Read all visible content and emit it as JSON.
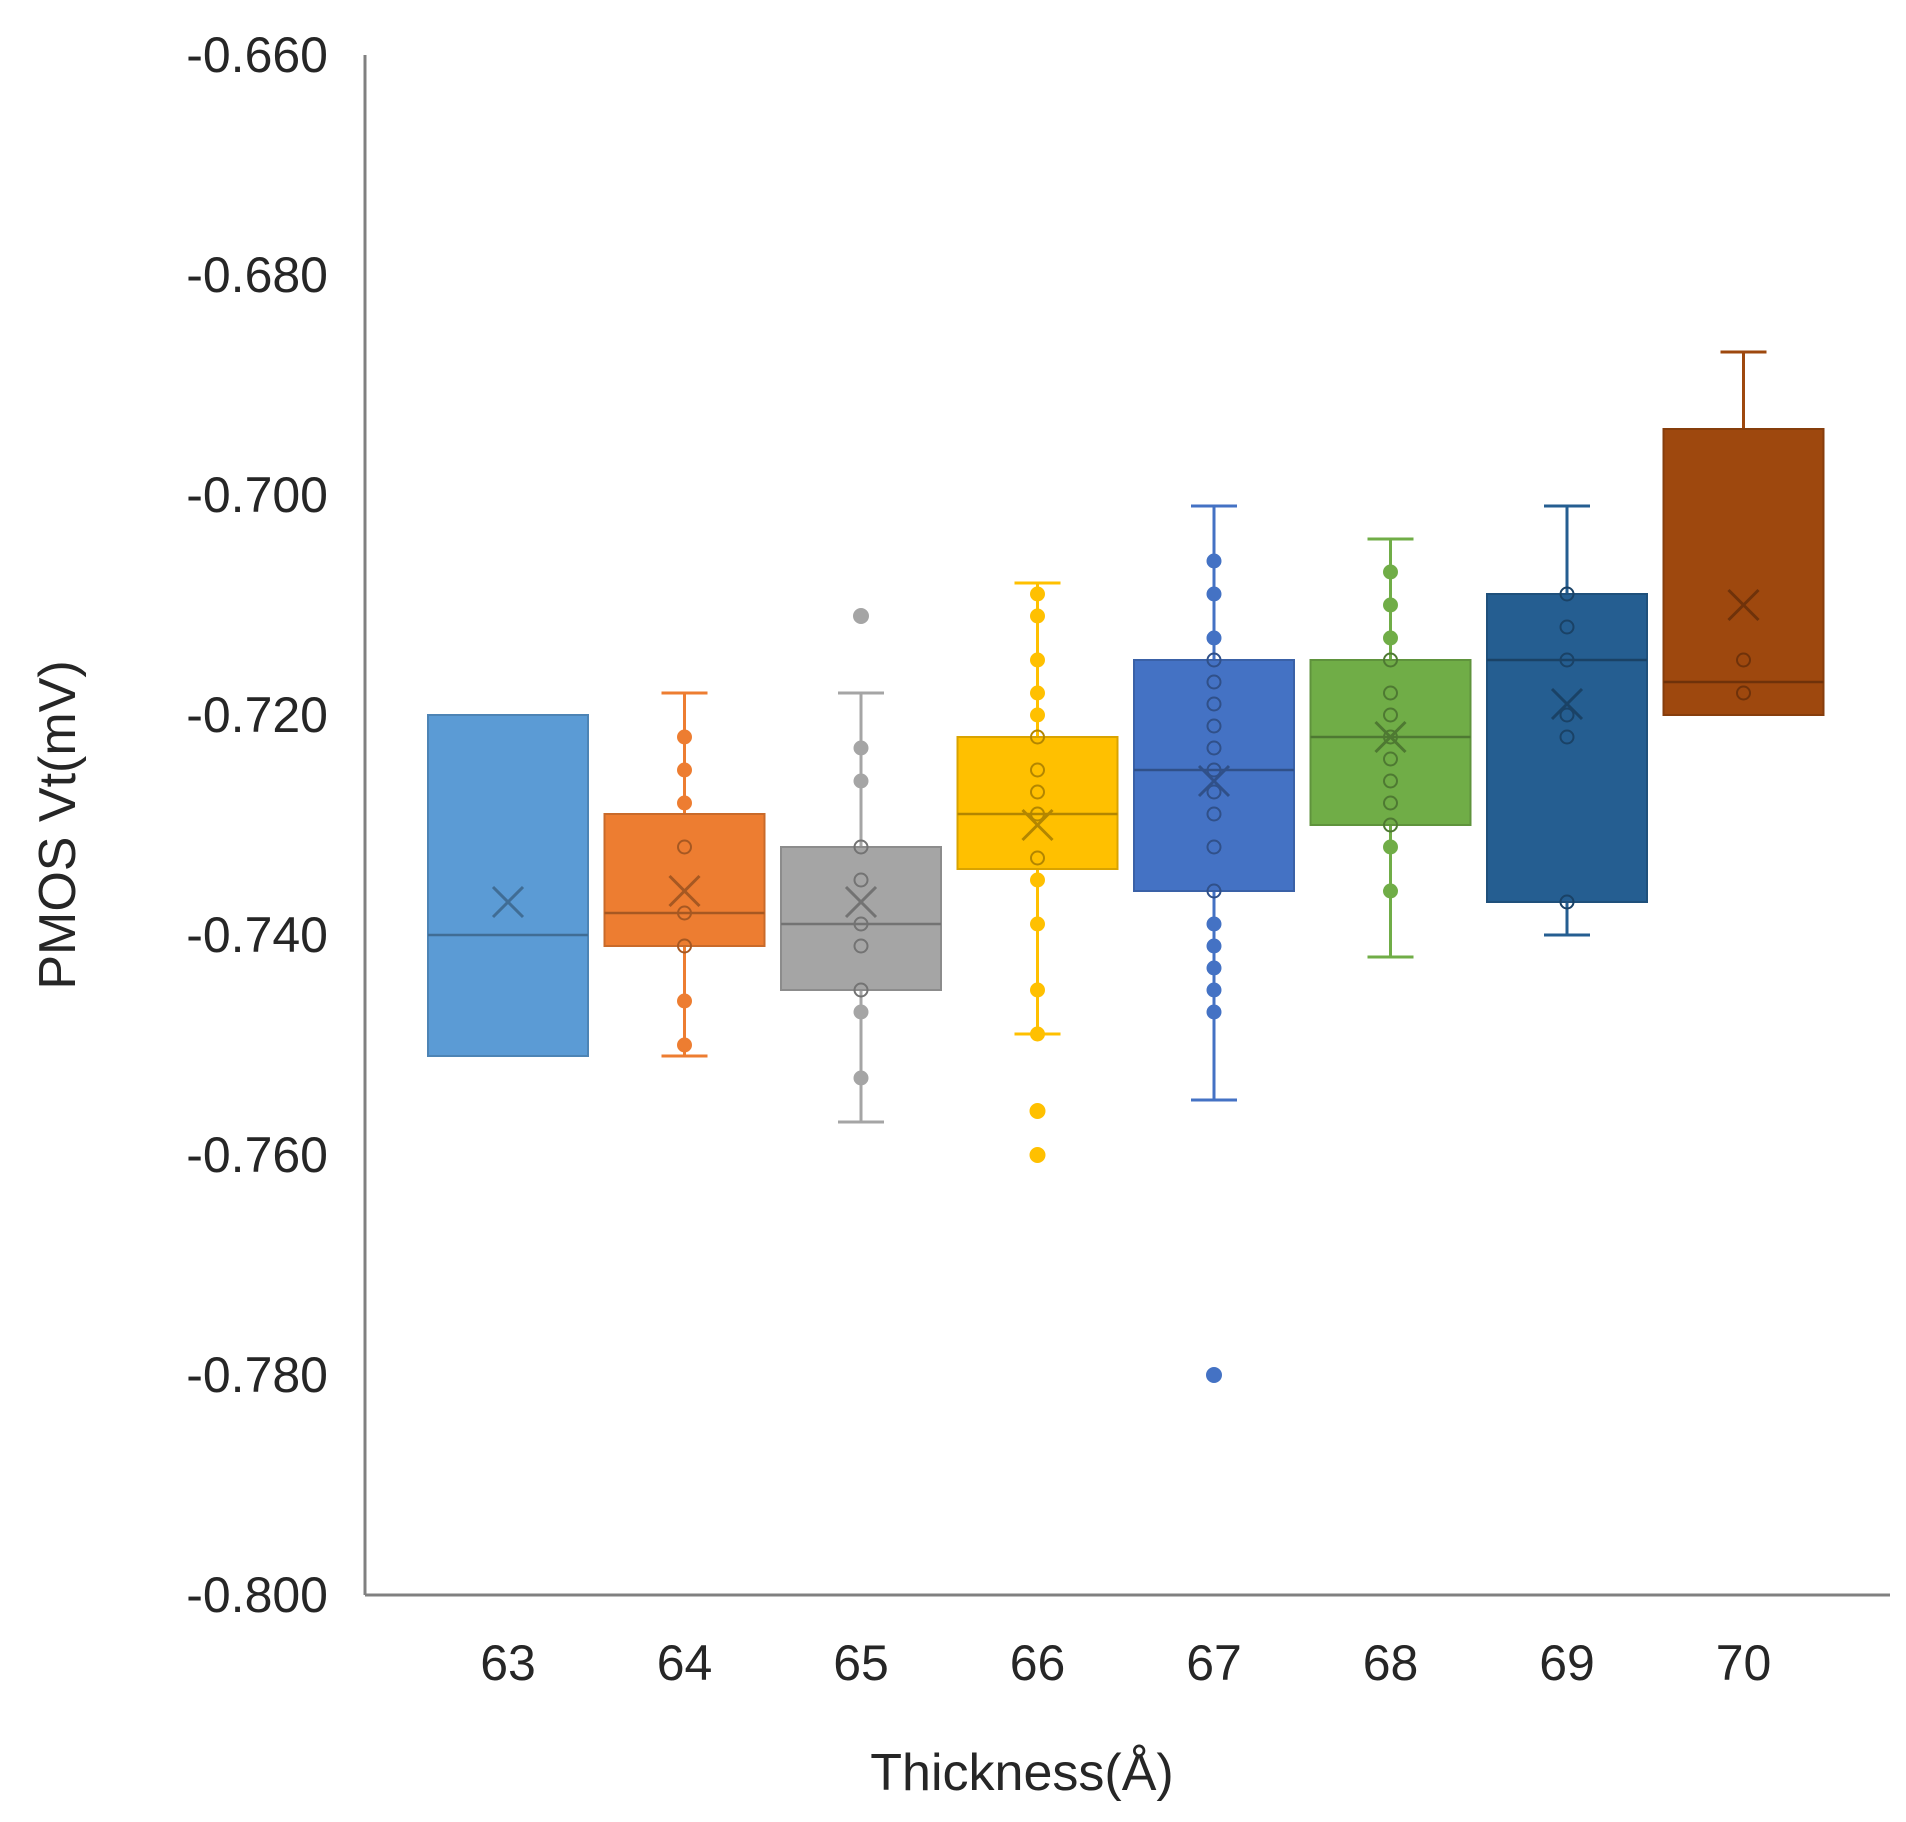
{
  "chart_data": {
    "type": "box",
    "title": "",
    "xlabel": "Thickness(Å)",
    "ylabel": "PMOS Vt(mV)",
    "ylim": [
      -0.8,
      -0.66
    ],
    "yticks": [
      "-0.660",
      "-0.680",
      "-0.700",
      "-0.720",
      "-0.740",
      "-0.760",
      "-0.780",
      "-0.800"
    ],
    "ytick_values": [
      -0.66,
      -0.68,
      -0.7,
      -0.72,
      -0.74,
      -0.76,
      -0.78,
      -0.8
    ],
    "categories": [
      "63",
      "64",
      "65",
      "66",
      "67",
      "68",
      "69",
      "70"
    ],
    "grid": false,
    "boxes": [
      {
        "category": "63",
        "color": "#5B9BD5",
        "whisker_low": -0.751,
        "q1": -0.751,
        "median": -0.74,
        "q3": -0.72,
        "whisker_high": -0.72,
        "mean": -0.737,
        "points": [],
        "outliers": []
      },
      {
        "category": "64",
        "color": "#ED7D31",
        "whisker_low": -0.751,
        "q1": -0.741,
        "median": -0.738,
        "q3": -0.729,
        "whisker_high": -0.718,
        "mean": -0.736,
        "points": [
          -0.722,
          -0.725,
          -0.728,
          -0.732,
          -0.738,
          -0.741,
          -0.746,
          -0.75
        ],
        "outliers": []
      },
      {
        "category": "65",
        "color": "#A5A5A5",
        "whisker_low": -0.757,
        "q1": -0.745,
        "median": -0.739,
        "q3": -0.732,
        "whisker_high": -0.718,
        "mean": -0.737,
        "points": [
          -0.723,
          -0.726,
          -0.732,
          -0.735,
          -0.739,
          -0.741,
          -0.745,
          -0.747,
          -0.753
        ],
        "outliers": [
          -0.711
        ]
      },
      {
        "category": "66",
        "color": "#FFC000",
        "whisker_low": -0.749,
        "q1": -0.734,
        "median": -0.729,
        "q3": -0.722,
        "whisker_high": -0.708,
        "mean": -0.73,
        "points": [
          -0.709,
          -0.711,
          -0.715,
          -0.718,
          -0.72,
          -0.722,
          -0.725,
          -0.727,
          -0.729,
          -0.733,
          -0.735,
          -0.739,
          -0.745,
          -0.749
        ],
        "outliers": [
          -0.756,
          -0.76
        ]
      },
      {
        "category": "67",
        "color": "#4472C4",
        "whisker_low": -0.755,
        "q1": -0.736,
        "median": -0.725,
        "q3": -0.715,
        "whisker_high": -0.701,
        "mean": -0.726,
        "points": [
          -0.706,
          -0.709,
          -0.713,
          -0.715,
          -0.717,
          -0.719,
          -0.721,
          -0.723,
          -0.725,
          -0.727,
          -0.729,
          -0.732,
          -0.736,
          -0.739,
          -0.741,
          -0.743,
          -0.745,
          -0.747
        ],
        "outliers": [
          -0.78
        ]
      },
      {
        "category": "68",
        "color": "#70AD47",
        "whisker_low": -0.742,
        "q1": -0.73,
        "median": -0.722,
        "q3": -0.715,
        "whisker_high": -0.704,
        "mean": -0.722,
        "points": [
          -0.707,
          -0.71,
          -0.713,
          -0.715,
          -0.718,
          -0.72,
          -0.722,
          -0.724,
          -0.726,
          -0.728,
          -0.73,
          -0.732,
          -0.736
        ],
        "outliers": []
      },
      {
        "category": "69",
        "color": "#255E91",
        "whisker_low": -0.74,
        "q1": -0.737,
        "median": -0.715,
        "q3": -0.709,
        "whisker_high": -0.701,
        "mean": -0.719,
        "points": [
          -0.709,
          -0.712,
          -0.715,
          -0.72,
          -0.722,
          -0.737
        ],
        "outliers": []
      },
      {
        "category": "70",
        "color": "#9E480E",
        "whisker_low": -0.72,
        "q1": -0.72,
        "median": -0.717,
        "q3": -0.694,
        "whisker_high": -0.687,
        "mean": -0.71,
        "points": [
          -0.715,
          -0.718
        ],
        "outliers": []
      }
    ]
  }
}
